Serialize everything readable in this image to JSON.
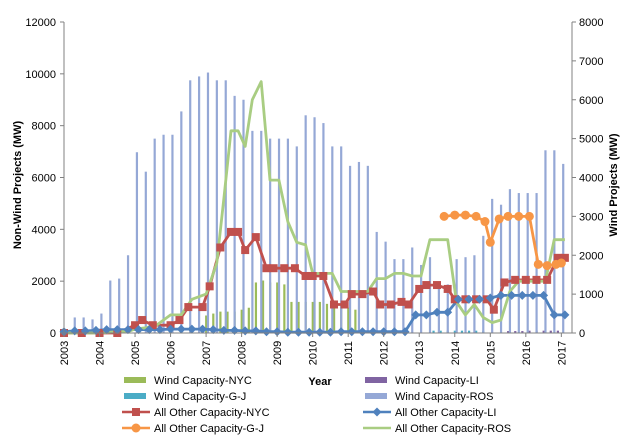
{
  "chart_data": {
    "type": "bar-line-combo",
    "title": "",
    "xlabel": "Year",
    "ylabel_left": "Non-Wind Projects (MW)",
    "ylabel_right": "Wind Projects (MW)",
    "ylim_left": [
      0,
      12000
    ],
    "ylim_right": [
      0,
      8000
    ],
    "yticks_left": [
      0,
      2000,
      4000,
      6000,
      8000,
      10000,
      12000
    ],
    "yticks_right": [
      0,
      1000,
      2000,
      3000,
      4000,
      5000,
      6000,
      7000,
      8000
    ],
    "ytick_labels_left": [
      "0",
      "2000",
      "4000",
      "6000",
      "8000",
      "10000",
      "12000"
    ],
    "ytick_labels_right": [
      "0",
      "1000",
      "2000",
      "3000",
      "4000",
      "5000",
      "6000",
      "7000",
      "8000"
    ],
    "xlim": [
      2003,
      2017.3
    ],
    "xtick_labels": [
      "2003",
      "2004",
      "2005",
      "2006",
      "2007",
      "2008",
      "2009",
      "2010",
      "2011",
      "2012",
      "2013",
      "2014",
      "2015",
      "2016",
      "2017"
    ],
    "grid": false,
    "legend_position": "bottom",
    "bar_axis": "right",
    "line_axis": "left",
    "series": [
      {
        "name": "Wind Capacity-NYC",
        "kind": "bar",
        "color": "#9BBB59",
        "x": [
          2007.0,
          2007.2,
          2007.4,
          2007.6,
          2007.8,
          2008.0,
          2008.2,
          2008.4,
          2008.6,
          2008.8,
          2009.0,
          2009.2,
          2009.4,
          2009.6,
          2009.8,
          2010.0,
          2010.2,
          2010.4,
          2010.6,
          2010.8,
          2011.0,
          2011.2
        ],
        "values": [
          450,
          500,
          550,
          550,
          550,
          600,
          650,
          1300,
          1350,
          1300,
          1300,
          1250,
          800,
          800,
          800,
          800,
          800,
          750,
          750,
          700,
          650,
          600
        ]
      },
      {
        "name": "Wind Capacity-LI",
        "kind": "bar",
        "color": "#8064A2",
        "x": [
          2015.5,
          2015.7,
          2015.9,
          2016.1,
          2016.3,
          2016.5,
          2016.7,
          2016.9
        ],
        "values": [
          50,
          50,
          50,
          60,
          60,
          60,
          60,
          60
        ]
      },
      {
        "name": "Wind Capacity-G-J",
        "kind": "bar",
        "color": "#4BACC6",
        "x": [
          2013.4,
          2013.6,
          2013.8,
          2014.0,
          2014.2,
          2014.4,
          2014.6,
          2014.8
        ],
        "values": [
          60,
          60,
          60,
          60,
          60,
          60,
          60,
          60
        ]
      },
      {
        "name": "Wind Capacity-ROS",
        "kind": "bar",
        "color": "#95A8D6",
        "x": [
          2003.3,
          2003.55,
          2003.8,
          2004.05,
          2004.3,
          2004.55,
          2004.8,
          2005.05,
          2005.3,
          2005.55,
          2005.8,
          2006.05,
          2006.3,
          2006.55,
          2006.8,
          2007.05,
          2007.3,
          2007.55,
          2007.8,
          2008.05,
          2008.3,
          2008.55,
          2008.8,
          2009.05,
          2009.3,
          2009.55,
          2009.8,
          2010.05,
          2010.3,
          2010.55,
          2010.8,
          2011.05,
          2011.3,
          2011.55,
          2011.8,
          2012.05,
          2012.3,
          2012.55,
          2012.8,
          2013.05,
          2013.3,
          2013.55,
          2013.8,
          2014.05,
          2014.3,
          2014.55,
          2014.8,
          2015.05,
          2015.3,
          2015.55,
          2015.8,
          2016.05,
          2016.3,
          2016.55,
          2016.8,
          2017.05
        ],
        "values": [
          400,
          400,
          350,
          500,
          1350,
          1400,
          2000,
          4650,
          4150,
          5000,
          5100,
          5100,
          5700,
          6500,
          6600,
          6700,
          6500,
          6500,
          6100,
          6000,
          5200,
          5200,
          5000,
          5000,
          5000,
          4800,
          5600,
          5550,
          5400,
          4800,
          4800,
          4300,
          4400,
          4300,
          2600,
          2350,
          1900,
          1900,
          2200,
          1750,
          1950,
          1300,
          1250,
          1900,
          1950,
          2000,
          2500,
          3450,
          3300,
          3700,
          3600,
          3600,
          3600,
          4700,
          4700,
          4350
        ]
      },
      {
        "name": "All Other Capacity-NYC",
        "kind": "line",
        "color": "#C0504D",
        "marker": "square",
        "x": [
          2003.0,
          2003.5,
          2004.0,
          2004.5,
          2005.0,
          2005.2,
          2005.5,
          2006.0,
          2006.25,
          2006.5,
          2006.9,
          2007.1,
          2007.4,
          2007.7,
          2007.9,
          2008.1,
          2008.4,
          2008.7,
          2008.9,
          2009.2,
          2009.5,
          2009.8,
          2010.0,
          2010.3,
          2010.6,
          2010.9,
          2011.1,
          2011.4,
          2011.7,
          2011.9,
          2012.2,
          2012.5,
          2012.7,
          2013.0,
          2013.2,
          2013.5,
          2013.8,
          2014.0,
          2014.3,
          2014.6,
          2014.9,
          2015.1,
          2015.4,
          2015.7,
          2016.0,
          2016.3,
          2016.6,
          2016.9,
          2017.1
        ],
        "values": [
          0,
          0,
          0,
          0,
          300,
          500,
          300,
          300,
          500,
          1000,
          1000,
          1800,
          3300,
          3900,
          3900,
          3200,
          3700,
          2500,
          2500,
          2500,
          2500,
          2200,
          2200,
          2200,
          1100,
          1100,
          1500,
          1500,
          1600,
          1100,
          1100,
          1200,
          1100,
          1700,
          1850,
          1850,
          1700,
          1300,
          1300,
          1300,
          1300,
          900,
          1950,
          2050,
          2050,
          2050,
          2050,
          2900,
          2900
        ]
      },
      {
        "name": "All Other Capacity-LI",
        "kind": "line",
        "color": "#4F81BD",
        "marker": "diamond",
        "x": [
          2003.0,
          2003.3,
          2003.6,
          2003.9,
          2004.2,
          2004.5,
          2004.8,
          2005.1,
          2005.4,
          2005.7,
          2006.0,
          2006.3,
          2006.6,
          2006.9,
          2007.2,
          2007.5,
          2007.8,
          2008.1,
          2008.4,
          2008.7,
          2009.0,
          2009.3,
          2009.6,
          2009.9,
          2010.2,
          2010.5,
          2010.8,
          2011.1,
          2011.4,
          2011.7,
          2012.0,
          2012.3,
          2012.6,
          2012.9,
          2013.2,
          2013.5,
          2013.8,
          2014.1,
          2014.4,
          2014.7,
          2015.0,
          2015.3,
          2015.6,
          2015.9,
          2016.2,
          2016.5,
          2016.8,
          2017.1
        ],
        "values": [
          50,
          80,
          80,
          100,
          130,
          130,
          130,
          130,
          130,
          130,
          150,
          150,
          150,
          150,
          130,
          100,
          100,
          80,
          80,
          50,
          50,
          30,
          30,
          30,
          30,
          30,
          50,
          50,
          50,
          50,
          50,
          50,
          50,
          700,
          700,
          800,
          800,
          1300,
          1300,
          1300,
          1350,
          1450,
          1450,
          1450,
          1450,
          1450,
          700,
          700
        ]
      },
      {
        "name": "All Other Capacity-G-J",
        "kind": "line",
        "color": "#F79646",
        "marker": "circle",
        "x": [
          2013.7,
          2014.0,
          2014.3,
          2014.6,
          2014.85,
          2015.0,
          2015.25,
          2015.5,
          2015.8,
          2016.1,
          2016.35,
          2016.6,
          2016.85,
          2017.0
        ],
        "values": [
          4500,
          4550,
          4550,
          4500,
          4300,
          3500,
          4400,
          4500,
          4500,
          4500,
          2650,
          2600,
          2650,
          2700
        ]
      },
      {
        "name": "All Other Capacity-ROS",
        "kind": "line",
        "color": "#A9CD82",
        "marker": "none",
        "x": [
          2003.0,
          2003.5,
          2004.0,
          2004.5,
          2004.8,
          2005.0,
          2005.3,
          2005.6,
          2006.0,
          2006.3,
          2006.6,
          2007.0,
          2007.3,
          2007.5,
          2007.7,
          2007.9,
          2008.1,
          2008.3,
          2008.55,
          2008.8,
          2009.05,
          2009.3,
          2009.55,
          2009.8,
          2010.0,
          2010.3,
          2010.55,
          2010.8,
          2011.05,
          2011.3,
          2011.55,
          2011.8,
          2012.05,
          2012.3,
          2012.55,
          2012.8,
          2013.05,
          2013.3,
          2013.55,
          2013.8,
          2014.05,
          2014.3,
          2014.55,
          2014.8,
          2015.05,
          2015.3,
          2015.55,
          2015.8,
          2016.05,
          2016.3,
          2016.55,
          2016.8,
          2017.1
        ],
        "values": [
          0,
          0,
          0,
          50,
          50,
          150,
          200,
          300,
          700,
          700,
          1300,
          1500,
          2700,
          5200,
          7800,
          7800,
          7200,
          9000,
          9700,
          5900,
          5900,
          4300,
          3500,
          3400,
          2300,
          2300,
          2300,
          1600,
          1600,
          1600,
          1600,
          2100,
          2100,
          2300,
          2300,
          2200,
          2200,
          3600,
          3600,
          3600,
          1200,
          700,
          1100,
          600,
          400,
          500,
          1600,
          2000,
          2000,
          2000,
          2000,
          3600,
          3600
        ]
      }
    ]
  }
}
